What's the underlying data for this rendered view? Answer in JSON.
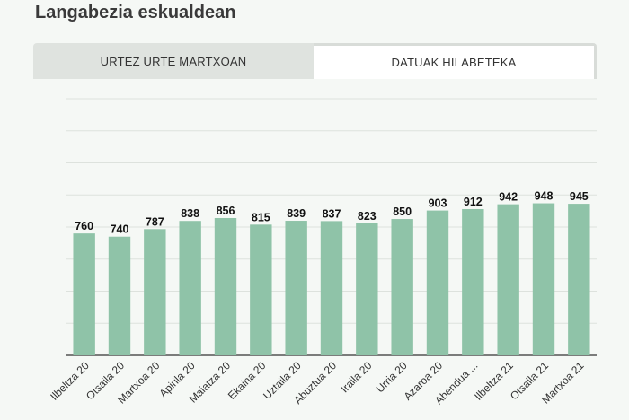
{
  "title": "Langabezia eskualdean",
  "tabs": [
    {
      "label": "URTEZ URTE MARTXOAN",
      "active": false
    },
    {
      "label": "DATUAK HILABETEKA",
      "active": true
    }
  ],
  "colors": {
    "bar": "#8fc3a8",
    "grid": "#dde2dd",
    "axis": "#333333"
  },
  "chart_data": {
    "type": "bar",
    "title": "",
    "xlabel": "",
    "ylabel": "",
    "categories": [
      "Ilbeltza 20",
      "Otsaila 20",
      "Martxoa 20",
      "Apirila 20",
      "Maiatza 20",
      "Ekaina 20",
      "Uztaila 20",
      "Abuztua 20",
      "Iraila 20",
      "Urria 20",
      "Azaroa 20",
      "Abendua ...",
      "Ilbeltza 21",
      "Otsaila 21",
      "Martxoa 21"
    ],
    "values": [
      760,
      740,
      787,
      838,
      856,
      815,
      839,
      837,
      823,
      850,
      903,
      912,
      942,
      948,
      945
    ],
    "ylim": [
      0,
      1600
    ],
    "grid": true,
    "y_tick_labels_visible": false
  }
}
